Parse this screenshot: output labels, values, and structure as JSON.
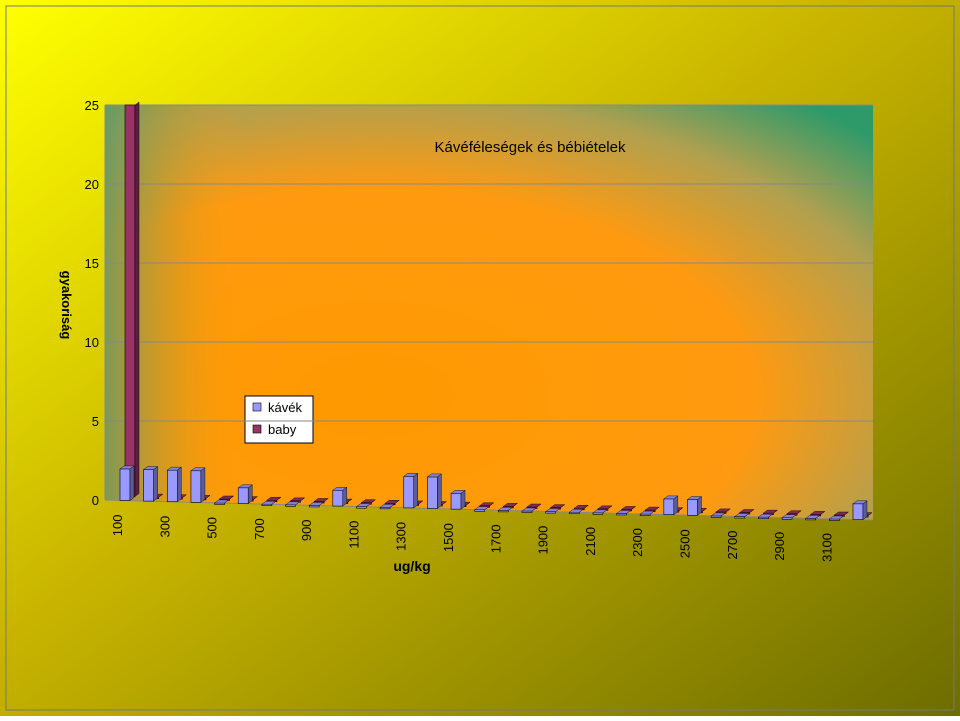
{
  "chart_data": {
    "type": "bar3d",
    "title": "Kávéféleségek és bébiételek",
    "x_label": "ug/kg",
    "y_label": "gyakoriság",
    "categories": [
      100,
      null,
      300,
      null,
      500,
      null,
      700,
      null,
      900,
      null,
      1100,
      null,
      1300,
      null,
      1500,
      null,
      1700,
      null,
      1900,
      null,
      2100,
      null,
      2300,
      null,
      2500,
      null,
      2700,
      null,
      2900,
      null,
      3100,
      null
    ],
    "series": [
      {
        "name": "kávék",
        "color": "#9999ff",
        "values": [
          2,
          2,
          2,
          2,
          0,
          1,
          0,
          0,
          0,
          1,
          0,
          0,
          2,
          2,
          1,
          0,
          0,
          0,
          0,
          0,
          0,
          0,
          0,
          1,
          1,
          0,
          0,
          0,
          0,
          0,
          0,
          1
        ]
      },
      {
        "name": "baby",
        "color": "#993366",
        "values": [
          25,
          0,
          0,
          0,
          0,
          0,
          0,
          0,
          0,
          0,
          0,
          0,
          0,
          0,
          0,
          0,
          0,
          0,
          0,
          0,
          0,
          0,
          0,
          0,
          0,
          0,
          0,
          0,
          0,
          0,
          0,
          0
        ]
      }
    ],
    "ylim": [
      0,
      25
    ],
    "yticks": [
      0,
      5,
      10,
      15,
      20,
      25
    ],
    "grid": true
  }
}
